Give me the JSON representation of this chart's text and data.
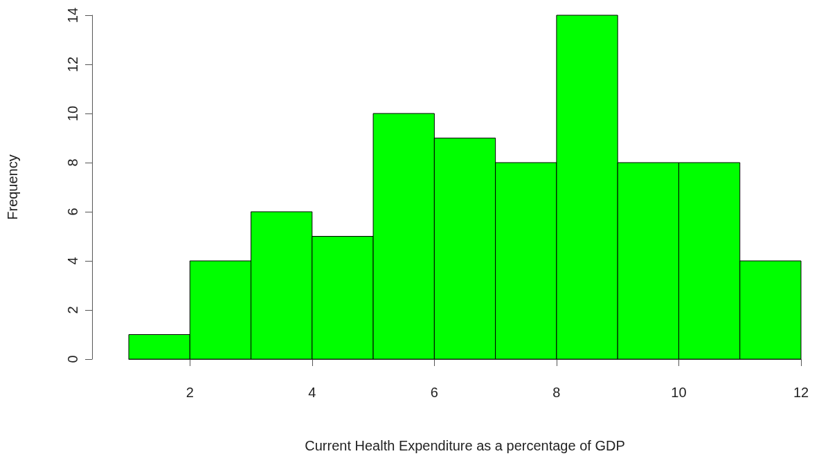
{
  "chart_data": {
    "type": "histogram",
    "xlabel": "Current Health Expenditure as a percentage of GDP",
    "ylabel": "Frequency",
    "bins": [
      1,
      2,
      3,
      4,
      5,
      6,
      7,
      8,
      9,
      10,
      11,
      12
    ],
    "values": [
      1,
      4,
      6,
      5,
      10,
      9,
      8,
      14,
      8,
      8,
      4
    ],
    "color": "#00ff00",
    "xlim": [
      1,
      12
    ],
    "xticks": [
      2,
      4,
      6,
      8,
      10,
      12
    ],
    "ylim": [
      0,
      14
    ],
    "yticks": [
      0,
      2,
      4,
      6,
      8,
      10,
      12,
      14
    ],
    "grid": false
  }
}
